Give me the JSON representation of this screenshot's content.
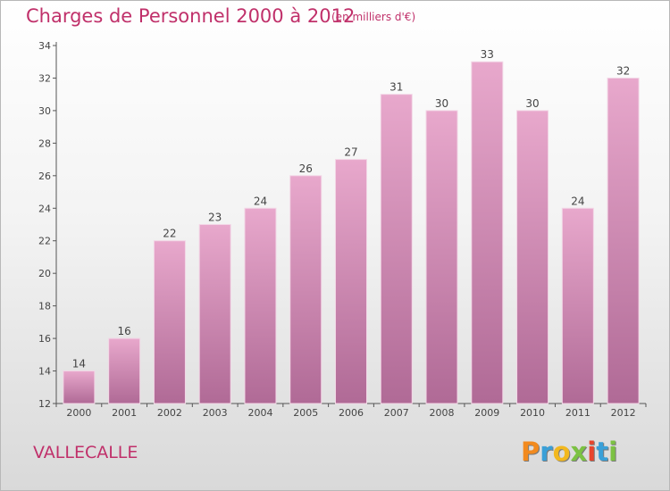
{
  "header": {
    "title": "Charges de Personnel 2000 à 2012",
    "unit": "(en milliers d'€)"
  },
  "footer": {
    "place": "VALLECALLE",
    "logo_letters": [
      "P",
      "r",
      "o",
      "x",
      "i",
      "t",
      "i"
    ],
    "logo_colors": [
      "#f28a1e",
      "#3aa0d8",
      "#f2b81e",
      "#7cc242",
      "#e8452c",
      "#3aa0d8",
      "#7cc242"
    ]
  },
  "colors": {
    "bar_top": "#e8a8cc",
    "bar_bottom": "#b06a96",
    "text_accent": "#c0306a"
  },
  "chart_data": {
    "type": "bar",
    "title": "Charges de Personnel 2000 à 2012",
    "subtitle": "(en milliers d'€)",
    "categories": [
      "2000",
      "2001",
      "2002",
      "2003",
      "2004",
      "2005",
      "2006",
      "2007",
      "2008",
      "2009",
      "2010",
      "2011",
      "2012"
    ],
    "values": [
      14,
      16,
      22,
      23,
      24,
      26,
      27,
      31,
      30,
      33,
      30,
      24,
      32
    ],
    "value_labels": [
      "14",
      "16",
      "22",
      "23",
      "24",
      "26",
      "27",
      "31",
      "30",
      "33",
      "30",
      "24",
      "32"
    ],
    "ylim": [
      12,
      34
    ],
    "yticks": [
      12,
      14,
      16,
      18,
      20,
      22,
      24,
      26,
      28,
      30,
      32,
      34
    ],
    "ytick_labels": [
      "12",
      "14",
      "16",
      "18",
      "20",
      "22",
      "24",
      "26",
      "28",
      "30",
      "32",
      "34"
    ],
    "grid": false,
    "legend": "none"
  }
}
